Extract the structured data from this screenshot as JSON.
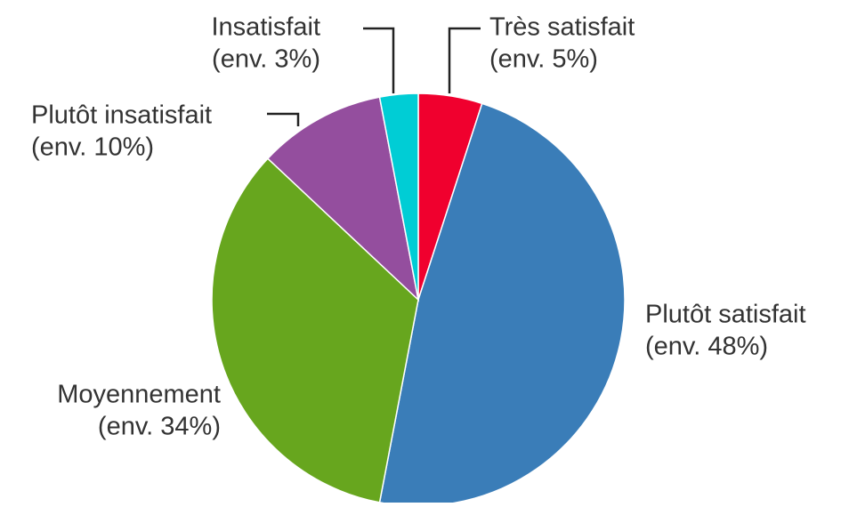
{
  "chart_data": {
    "type": "pie",
    "categories": [
      "Très satisfait",
      "Plutôt satisfait",
      "Moyennement",
      "Plutôt insatisfait",
      "Insatisfait"
    ],
    "values": [
      5,
      48,
      34,
      10,
      3
    ],
    "value_labels": [
      "(env. 5%)",
      "(env. 48%)",
      "(env. 34%)",
      "(env. 10%)",
      "(env. 3%)"
    ],
    "colors": [
      "#f0002e",
      "#3a7db8",
      "#67a61e",
      "#944e9e",
      "#00cdd5"
    ]
  }
}
